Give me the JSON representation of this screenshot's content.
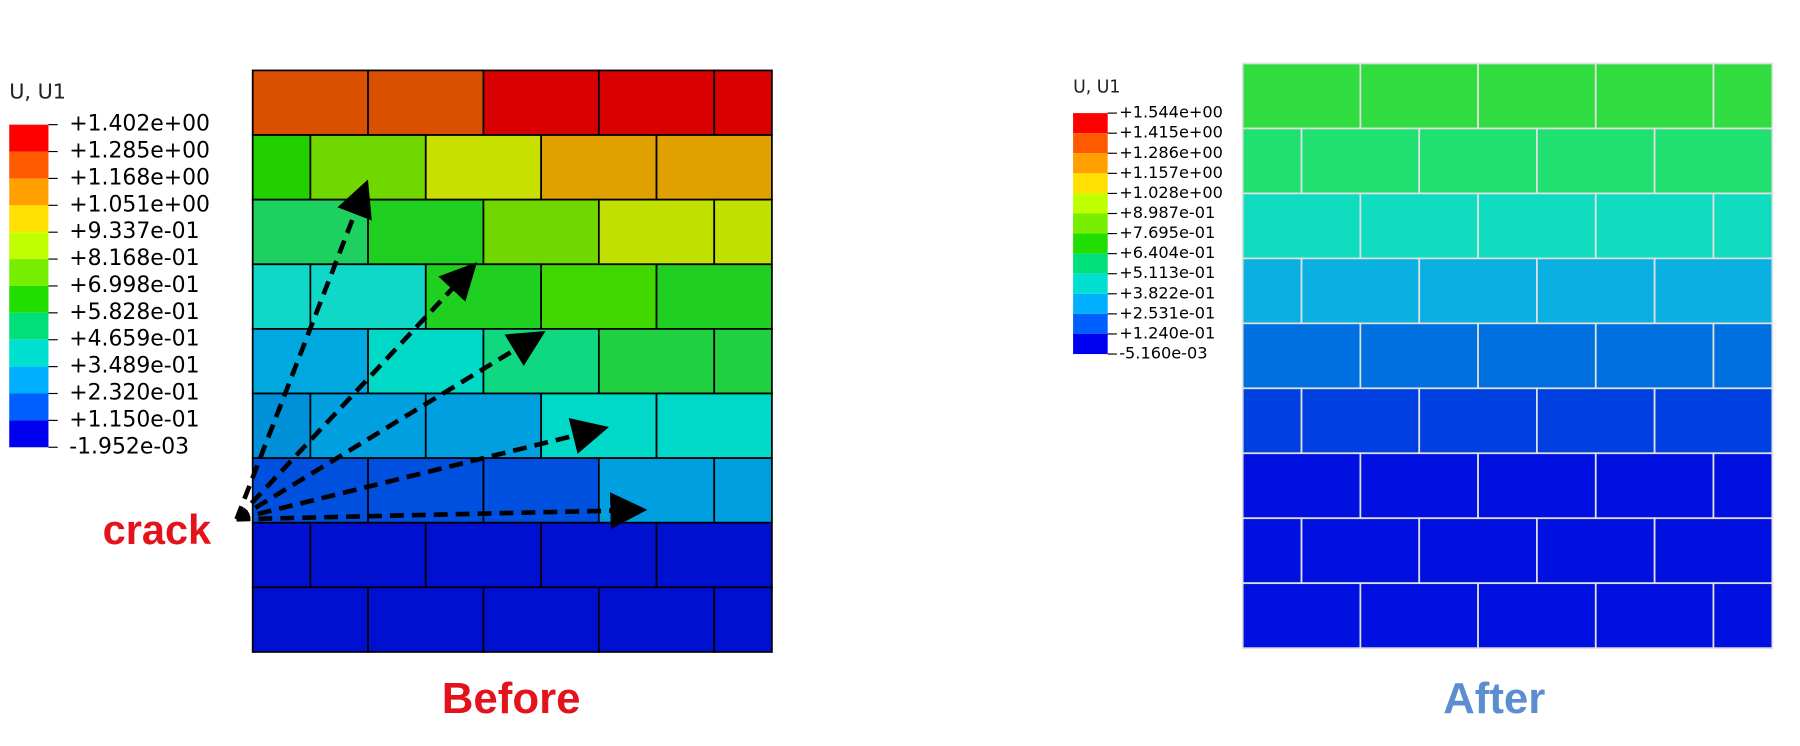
{
  "before": {
    "legend_title": "U, U1",
    "legend_labels": [
      "+1.402e+00",
      "+1.285e+00",
      "+1.168e+00",
      "+1.051e+00",
      "+9.337e-01",
      "+8.168e-01",
      "+6.998e-01",
      "+5.828e-01",
      "+4.659e-01",
      "+3.489e-01",
      "+2.320e-01",
      "+1.150e-01",
      "-1.952e-03"
    ],
    "annotation": "crack",
    "caption": "Before"
  },
  "after": {
    "legend_title": "U, U1",
    "legend_labels": [
      "+1.544e+00",
      "+1.415e+00",
      "+1.286e+00",
      "+1.157e+00",
      "+1.028e+00",
      "+8.987e-01",
      "+7.695e-01",
      "+6.404e-01",
      "+5.113e-01",
      "+3.822e-01",
      "+2.531e-01",
      "+1.240e-01",
      "-5.160e-03"
    ],
    "caption": "After"
  }
}
